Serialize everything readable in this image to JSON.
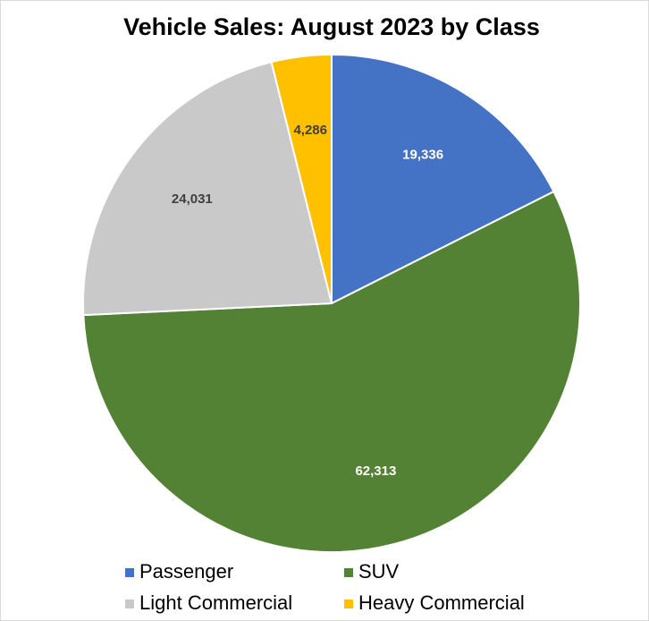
{
  "chart_data": {
    "type": "pie",
    "title": "Vehicle Sales: August 2023 by Class",
    "categories": [
      "Passenger",
      "SUV",
      "Light Commercial",
      "Heavy Commercial"
    ],
    "values": [
      19336,
      62313,
      24031,
      4286
    ],
    "value_labels": [
      "19,336",
      "62,313",
      "24,031",
      "4,286"
    ],
    "colors": [
      "#4472c4",
      "#548235",
      "#c9c9c9",
      "#ffc000"
    ],
    "legend": "bottom"
  }
}
